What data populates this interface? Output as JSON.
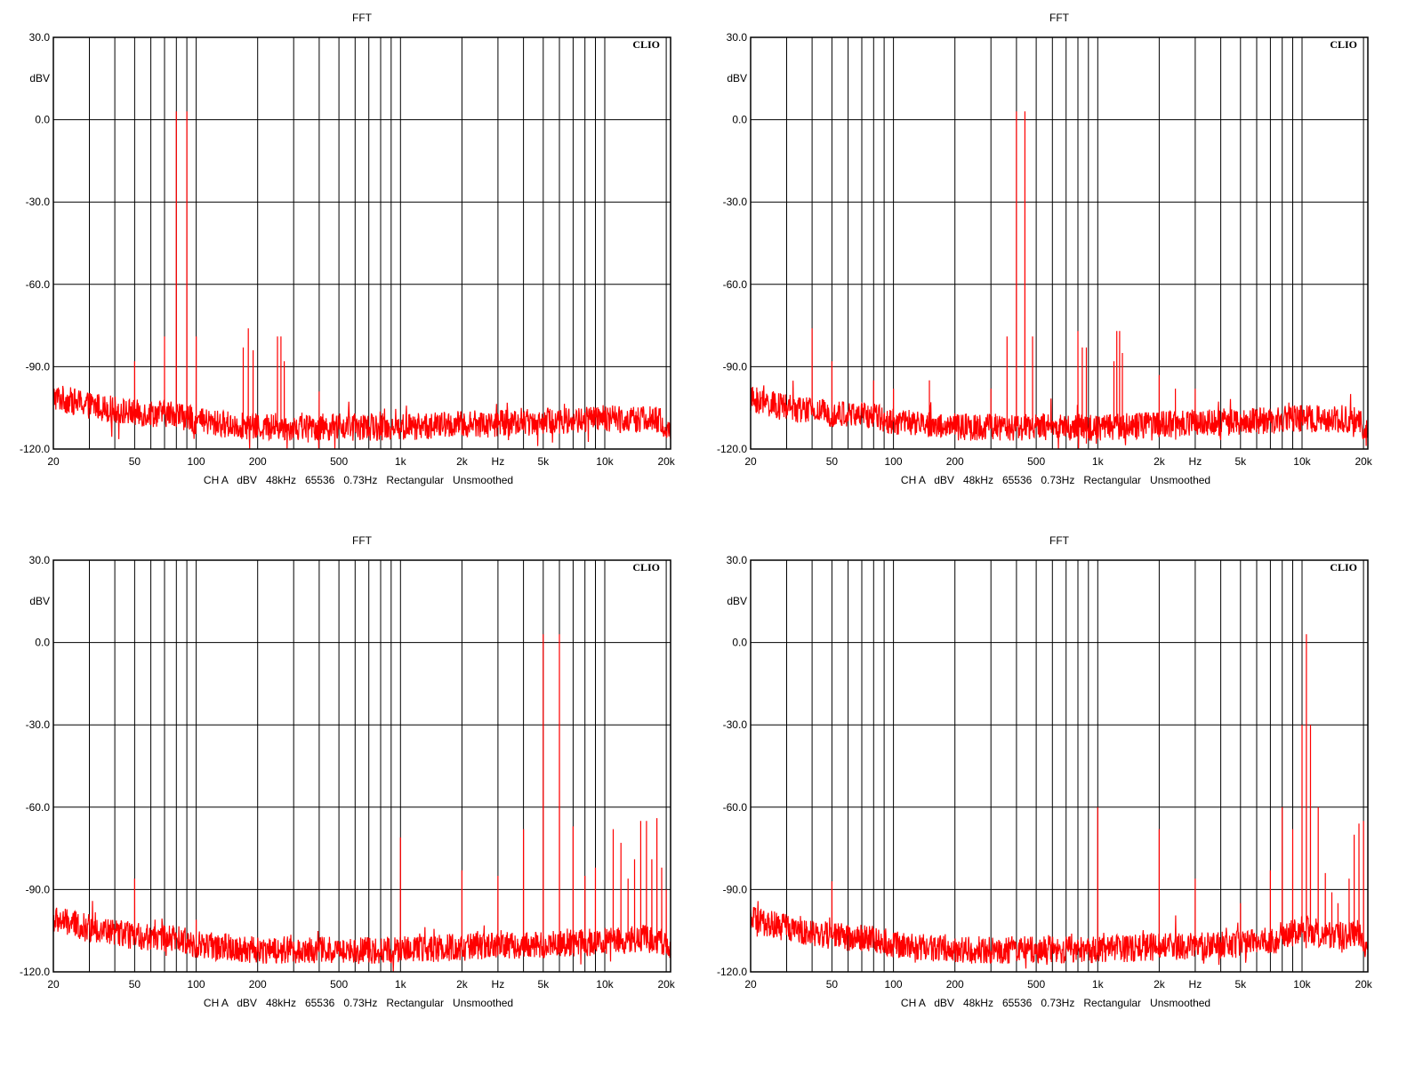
{
  "colors": {
    "trace": "#ff0000",
    "grid": "#000000",
    "frame": "#000000",
    "background": "#ffffff"
  },
  "chart_data": [
    {
      "type": "line",
      "title": "FFT",
      "brand": "CLIO",
      "ylabel": "dBV",
      "xlabel": "Hz",
      "xscale": "log",
      "xlim": [
        20,
        21000
      ],
      "ylim": [
        -120,
        30
      ],
      "yticks": [
        30,
        0,
        -30,
        -60,
        -90,
        -120
      ],
      "ytick_labels": [
        "30.0",
        "0.0",
        "-30.0",
        "-60.0",
        "-90.0",
        "-120.0"
      ],
      "xtick_values": [
        20,
        50,
        100,
        200,
        500,
        1000,
        2000,
        5000,
        10000,
        20000
      ],
      "xtick_labels": [
        "20",
        "50",
        "100",
        "200",
        "500",
        "1k",
        "2k",
        "5k",
        "10k",
        "20k"
      ],
      "grid": true,
      "footer": "CH A   dBV   48kHz   65536   0.73Hz   Rectangular   Unsmoothed",
      "series": [
        {
          "floor": [
            [
              20,
              -101
            ],
            [
              30,
              -104
            ],
            [
              50,
              -107
            ],
            [
              80,
              -107
            ],
            [
              100,
              -110
            ],
            [
              200,
              -112
            ],
            [
              500,
              -112
            ],
            [
              1000,
              -112
            ],
            [
              2000,
              -111
            ],
            [
              5000,
              -110
            ],
            [
              10000,
              -109
            ],
            [
              16000,
              -109
            ],
            [
              19000,
              -110
            ],
            [
              21000,
              -115
            ]
          ],
          "peaks": [
            [
              50,
              -88
            ],
            [
              70,
              -79
            ],
            [
              80,
              3
            ],
            [
              90,
              3
            ],
            [
              100,
              -79
            ],
            [
              170,
              -83
            ],
            [
              180,
              -76
            ],
            [
              190,
              -84
            ],
            [
              250,
              -79
            ],
            [
              260,
              -79
            ],
            [
              270,
              -88
            ],
            [
              400,
              -99
            ]
          ]
        }
      ]
    },
    {
      "type": "line",
      "title": "FFT",
      "brand": "CLIO",
      "ylabel": "dBV",
      "xlabel": "Hz",
      "xscale": "log",
      "xlim": [
        20,
        21000
      ],
      "ylim": [
        -120,
        30
      ],
      "yticks": [
        30,
        0,
        -30,
        -60,
        -90,
        -120
      ],
      "ytick_labels": [
        "30.0",
        "0.0",
        "-30.0",
        "-60.0",
        "-90.0",
        "-120.0"
      ],
      "xtick_values": [
        20,
        50,
        100,
        200,
        500,
        1000,
        2000,
        5000,
        10000,
        20000
      ],
      "xtick_labels": [
        "20",
        "50",
        "100",
        "200",
        "500",
        "1k",
        "2k",
        "5k",
        "10k",
        "20k"
      ],
      "grid": true,
      "footer": "CH A   dBV   48kHz   65536   0.73Hz   Rectangular   Unsmoothed",
      "series": [
        {
          "floor": [
            [
              20,
              -102
            ],
            [
              30,
              -105
            ],
            [
              50,
              -107
            ],
            [
              80,
              -108
            ],
            [
              100,
              -110
            ],
            [
              200,
              -112
            ],
            [
              500,
              -112
            ],
            [
              1000,
              -112
            ],
            [
              2000,
              -111
            ],
            [
              5000,
              -110
            ],
            [
              10000,
              -109
            ],
            [
              16000,
              -109
            ],
            [
              19000,
              -110
            ],
            [
              21000,
              -115
            ]
          ],
          "peaks": [
            [
              40,
              -76
            ],
            [
              50,
              -88
            ],
            [
              80,
              -95
            ],
            [
              100,
              -98
            ],
            [
              150,
              -95
            ],
            [
              300,
              -98
            ],
            [
              360,
              -79
            ],
            [
              400,
              3
            ],
            [
              440,
              3
            ],
            [
              480,
              -79
            ],
            [
              800,
              -77
            ],
            [
              840,
              -83
            ],
            [
              880,
              -83
            ],
            [
              1200,
              -88
            ],
            [
              1240,
              -77
            ],
            [
              1280,
              -77
            ],
            [
              1320,
              -85
            ],
            [
              2000,
              -93
            ],
            [
              2400,
              -98
            ],
            [
              3000,
              -98
            ]
          ]
        }
      ]
    },
    {
      "type": "line",
      "title": "FFT",
      "brand": "CLIO",
      "ylabel": "dBV",
      "xlabel": "Hz",
      "xscale": "log",
      "xlim": [
        20,
        21000
      ],
      "ylim": [
        -120,
        30
      ],
      "yticks": [
        30,
        0,
        -30,
        -60,
        -90,
        -120
      ],
      "ytick_labels": [
        "30.0",
        "0.0",
        "-30.0",
        "-60.0",
        "-90.0",
        "-120.0"
      ],
      "xtick_values": [
        20,
        50,
        100,
        200,
        500,
        1000,
        2000,
        5000,
        10000,
        20000
      ],
      "xtick_labels": [
        "20",
        "50",
        "100",
        "200",
        "500",
        "1k",
        "2k",
        "5k",
        "10k",
        "20k"
      ],
      "grid": true,
      "footer": "CH A   dBV   48kHz   65536   0.73Hz   Rectangular   Unsmoothed",
      "series": [
        {
          "floor": [
            [
              20,
              -101
            ],
            [
              30,
              -104
            ],
            [
              50,
              -107
            ],
            [
              80,
              -108
            ],
            [
              100,
              -110
            ],
            [
              200,
              -112
            ],
            [
              500,
              -112
            ],
            [
              1000,
              -112
            ],
            [
              2000,
              -111
            ],
            [
              5000,
              -110
            ],
            [
              10000,
              -109
            ],
            [
              16000,
              -108
            ],
            [
              19000,
              -109
            ],
            [
              21000,
              -114
            ]
          ],
          "peaks": [
            [
              50,
              -86
            ],
            [
              100,
              -101
            ],
            [
              1000,
              -71
            ],
            [
              2000,
              -83
            ],
            [
              3000,
              -85
            ],
            [
              4000,
              -68
            ],
            [
              5000,
              3
            ],
            [
              6000,
              3
            ],
            [
              7000,
              -67
            ],
            [
              8000,
              -85
            ],
            [
              9000,
              -82
            ],
            [
              11000,
              -68
            ],
            [
              12000,
              -73
            ],
            [
              13000,
              -86
            ],
            [
              14000,
              -79
            ],
            [
              15000,
              -65
            ],
            [
              16000,
              -65
            ],
            [
              17000,
              -79
            ],
            [
              18000,
              -64
            ],
            [
              19000,
              -82
            ],
            [
              20000,
              -90
            ]
          ]
        }
      ]
    },
    {
      "type": "line",
      "title": "FFT",
      "brand": "CLIO",
      "ylabel": "dBV",
      "xlabel": "Hz",
      "xscale": "log",
      "xlim": [
        20,
        21000
      ],
      "ylim": [
        -120,
        30
      ],
      "yticks": [
        30,
        0,
        -30,
        -60,
        -90,
        -120
      ],
      "ytick_labels": [
        "30.0",
        "0.0",
        "-30.0",
        "-60.0",
        "-90.0",
        "-120.0"
      ],
      "xtick_values": [
        20,
        50,
        100,
        200,
        500,
        1000,
        2000,
        5000,
        10000,
        20000
      ],
      "xtick_labels": [
        "20",
        "50",
        "100",
        "200",
        "500",
        "1k",
        "2k",
        "5k",
        "10k",
        "20k"
      ],
      "grid": true,
      "footer": "CH A   dBV   48kHz   65536   0.73Hz   Rectangular   Unsmoothed",
      "series": [
        {
          "floor": [
            [
              20,
              -101
            ],
            [
              30,
              -104
            ],
            [
              50,
              -107
            ],
            [
              80,
              -108
            ],
            [
              100,
              -110
            ],
            [
              200,
              -112
            ],
            [
              500,
              -112
            ],
            [
              1000,
              -112
            ],
            [
              2000,
              -111
            ],
            [
              5000,
              -110
            ],
            [
              8000,
              -108
            ],
            [
              10000,
              -104
            ],
            [
              12000,
              -106
            ],
            [
              16000,
              -107
            ],
            [
              19000,
              -106
            ],
            [
              21000,
              -113
            ]
          ],
          "peaks": [
            [
              50,
              -87
            ],
            [
              1000,
              -60
            ],
            [
              2000,
              -68
            ],
            [
              3000,
              -86
            ],
            [
              5000,
              -95
            ],
            [
              7000,
              -83
            ],
            [
              8000,
              -60
            ],
            [
              9000,
              -68
            ],
            [
              10000,
              -30
            ],
            [
              10500,
              3
            ],
            [
              11000,
              -30
            ],
            [
              12000,
              -60
            ],
            [
              13000,
              -84
            ],
            [
              14000,
              -91
            ],
            [
              15000,
              -95
            ],
            [
              17000,
              -86
            ],
            [
              18000,
              -70
            ],
            [
              19000,
              -66
            ],
            [
              20000,
              -65
            ]
          ]
        }
      ]
    }
  ]
}
